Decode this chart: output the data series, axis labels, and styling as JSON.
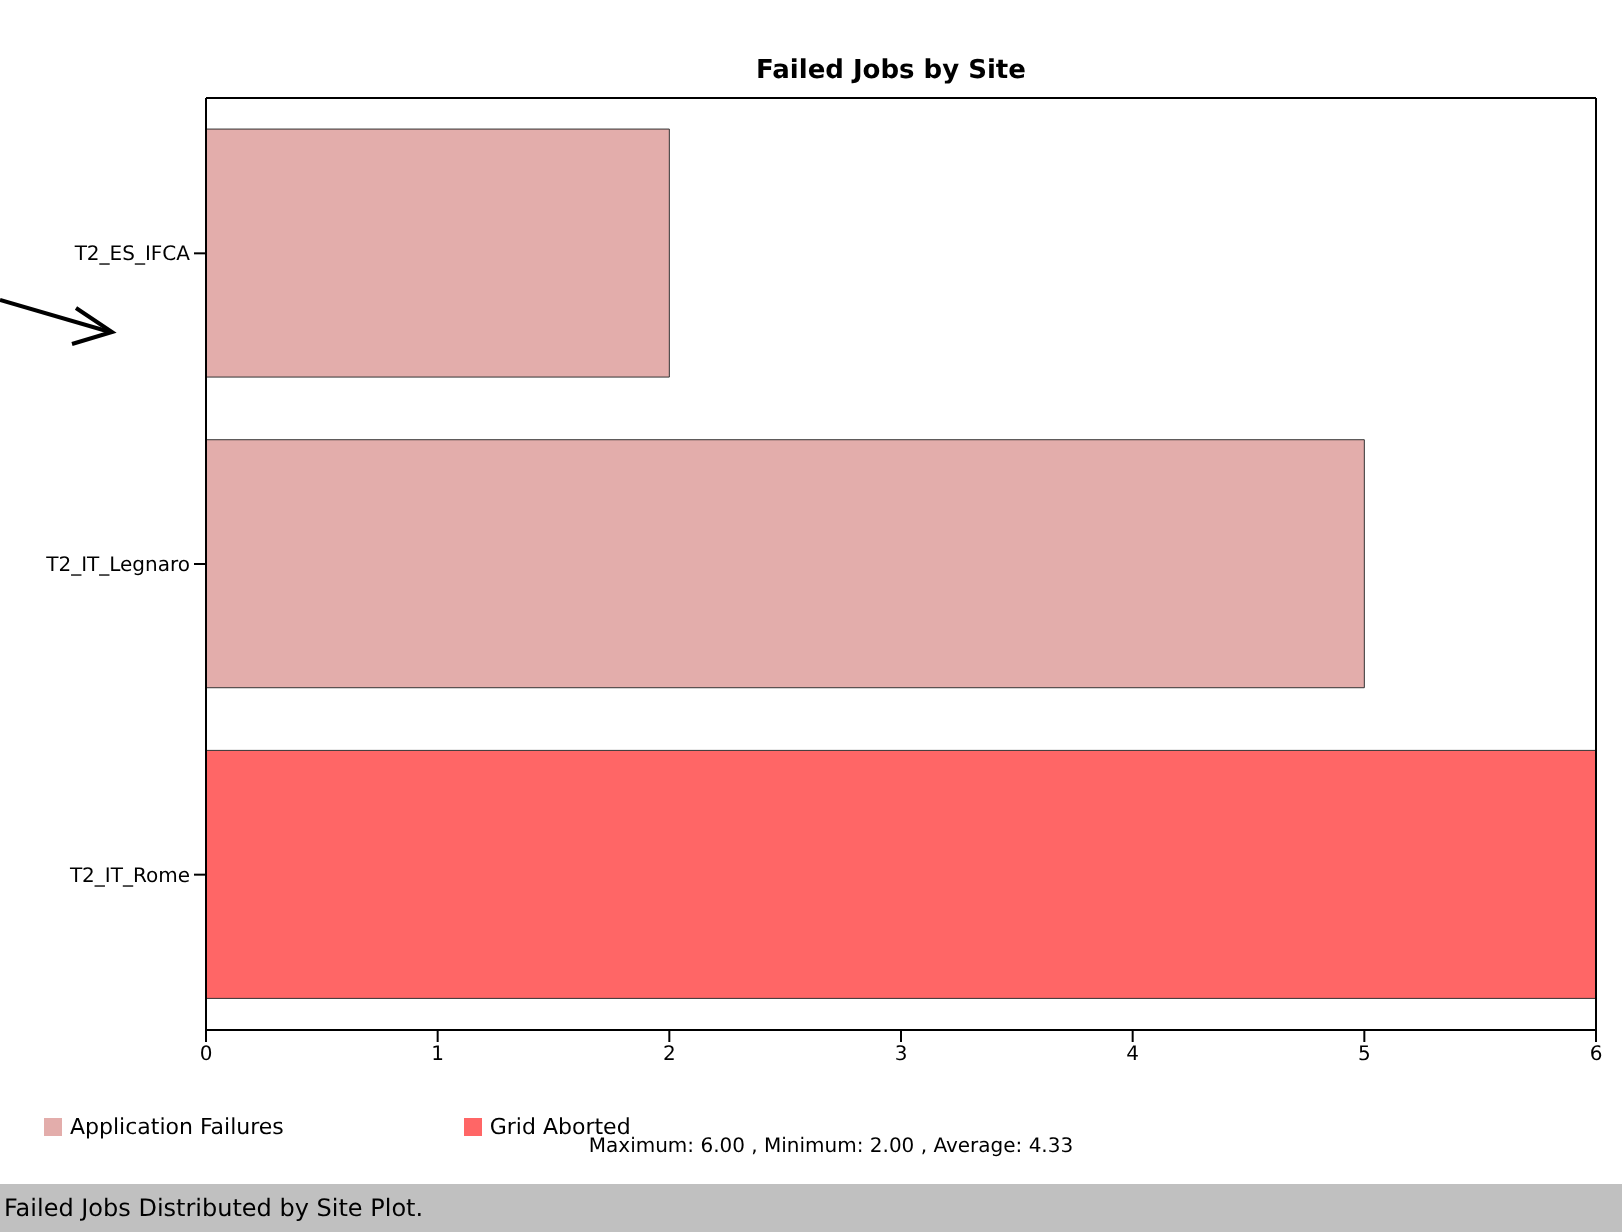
{
  "chart_data": {
    "type": "bar",
    "orientation": "horizontal",
    "stacked": true,
    "title": "Failed Jobs by Site",
    "categories": [
      "T2_ES_IFCA",
      "T2_IT_Legnaro",
      "T2_IT_Rome"
    ],
    "series": [
      {
        "name": "Grid Aborted",
        "color": "#ff6666",
        "values": [
          0,
          0,
          6
        ]
      },
      {
        "name": "Application Failures",
        "color": "#e3adab",
        "values": [
          2,
          5,
          0
        ]
      }
    ],
    "xlim": [
      0,
      6
    ],
    "xticks": [
      0,
      1,
      2,
      3,
      4,
      5,
      6
    ],
    "grid": false,
    "legend": "bottom left",
    "annotations": [
      "Maximum: 6.00 , Minimum: 2.00 , Average: 4.33",
      "Failed Jobs Distributed by Site Plot."
    ]
  }
}
